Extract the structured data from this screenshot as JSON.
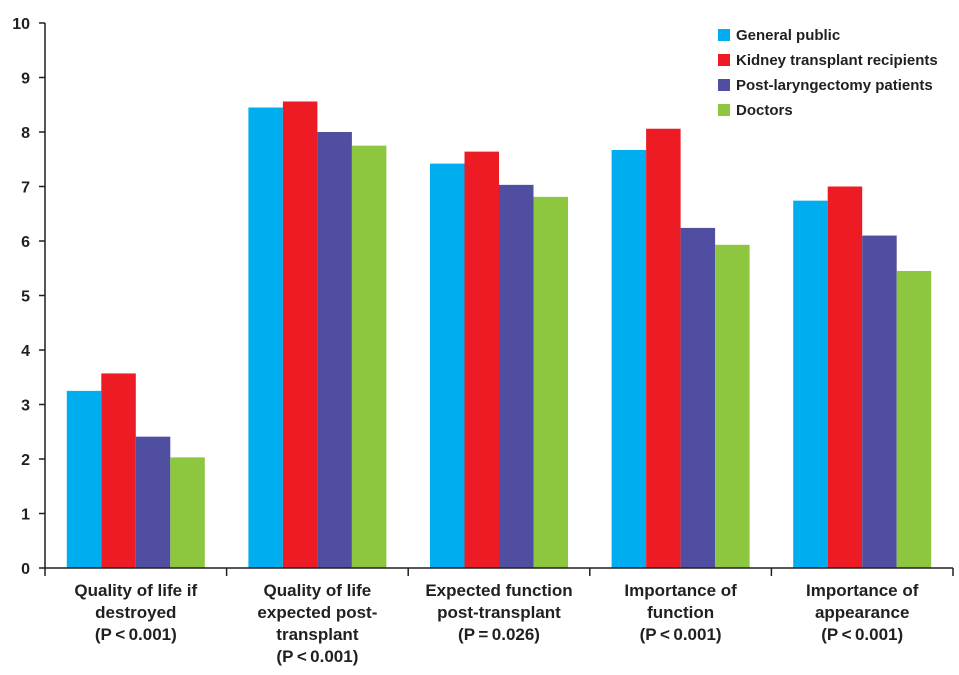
{
  "chart_data": {
    "type": "bar",
    "title": "",
    "xlabel": "",
    "ylabel": "",
    "ylim": [
      0,
      10
    ],
    "yticks": [
      0,
      1,
      2,
      3,
      4,
      5,
      6,
      7,
      8,
      9,
      10
    ],
    "grid": false,
    "legend_position": "top-right",
    "categories": [
      [
        "Quality of life if",
        "destroyed",
        "(P < 0.001)"
      ],
      [
        "Quality of life",
        "expected post-",
        "transplant",
        "(P < 0.001)"
      ],
      [
        "Expected function",
        "post-transplant",
        "(P = 0.026)"
      ],
      [
        "Importance of",
        "function",
        "(P < 0.001)"
      ],
      [
        "Importance of",
        "appearance",
        "(P < 0.001)"
      ]
    ],
    "series": [
      {
        "name": "General public",
        "color": "#00aeef",
        "values": [
          3.25,
          8.45,
          7.42,
          7.67,
          6.74
        ]
      },
      {
        "name": "Kidney transplant recipients",
        "color": "#ed1c24",
        "values": [
          3.57,
          8.56,
          7.64,
          8.06,
          7.0
        ]
      },
      {
        "name": "Post-laryngectomy patients",
        "color": "#4f4ea0",
        "values": [
          2.41,
          8.0,
          7.03,
          6.24,
          6.1
        ]
      },
      {
        "name": "Doctors",
        "color": "#8dc63f",
        "values": [
          2.03,
          7.75,
          6.81,
          5.93,
          5.45
        ]
      }
    ]
  }
}
